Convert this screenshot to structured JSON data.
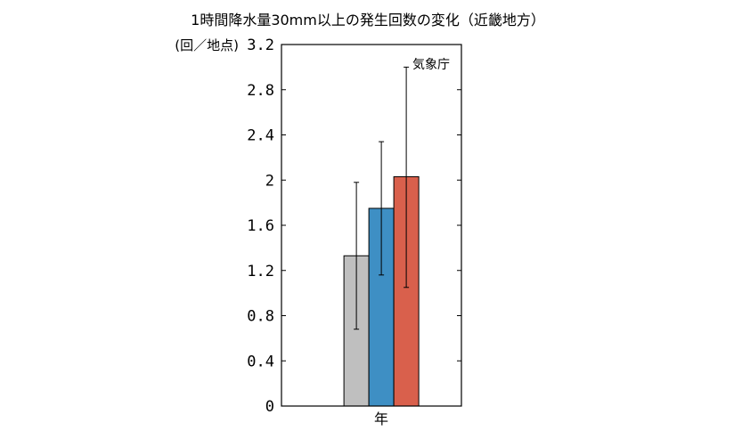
{
  "chart_data": {
    "type": "bar",
    "title": "1時間降水量30mm以上の発生回数の変化（近畿地方）",
    "ylabel": "(回／地点)",
    "xlabel": "",
    "categories": [
      "年"
    ],
    "ylim": [
      0,
      3.2
    ],
    "yticks": [
      0,
      0.4,
      0.8,
      1.2,
      1.6,
      2,
      2.4,
      2.8,
      3.2
    ],
    "ytick_labels": [
      "0",
      "0.4",
      "0.8",
      "1.2",
      "1.6",
      "2",
      "2.4",
      "2.8",
      "3.2"
    ],
    "source_label": "気象庁",
    "grid": false,
    "series": [
      {
        "color": "#bfbfbf",
        "values": [
          1.33
        ],
        "error_low": [
          0.68
        ],
        "error_high": [
          1.98
        ]
      },
      {
        "color": "#3e8fc4",
        "values": [
          1.75
        ],
        "error_low": [
          1.16
        ],
        "error_high": [
          2.34
        ]
      },
      {
        "color": "#d9604c",
        "values": [
          2.03
        ],
        "error_low": [
          1.05
        ],
        "error_high": [
          3.0
        ]
      }
    ]
  }
}
